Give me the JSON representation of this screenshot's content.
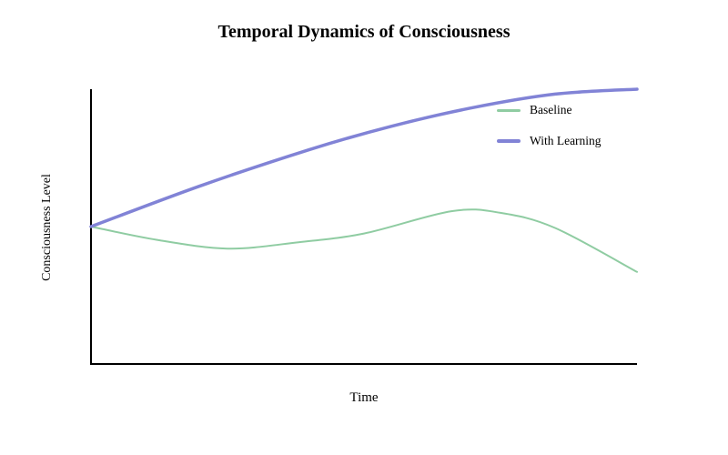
{
  "chart_data": {
    "type": "line",
    "title": "Temporal Dynamics of Consciousness",
    "xlabel": "Time",
    "ylabel": "Consciousness Level",
    "xlim": [
      0,
      10
    ],
    "ylim": [
      0,
      1
    ],
    "grid": false,
    "axis_ticks_visible": false,
    "axis_color": "#000000",
    "background_color": "#ffffff",
    "legend_position": "upper-right-inside",
    "legend_boxed": false,
    "series": [
      {
        "name": "Baseline",
        "color": "#8fcca2",
        "stroke_width": 2,
        "x": [
          0,
          1.2,
          2.5,
          3.8,
          5,
          6.6,
          7.5,
          8.5,
          10
        ],
        "y": [
          0.5,
          0.452,
          0.42,
          0.443,
          0.475,
          0.556,
          0.55,
          0.495,
          0.335
        ]
      },
      {
        "name": "With Learning",
        "color": "#8183d6",
        "stroke_width": 3.5,
        "x": [
          0,
          2,
          4,
          5.5,
          7,
          8.5,
          10
        ],
        "y": [
          0.5,
          0.648,
          0.78,
          0.865,
          0.933,
          0.982,
          1.0
        ]
      }
    ]
  }
}
